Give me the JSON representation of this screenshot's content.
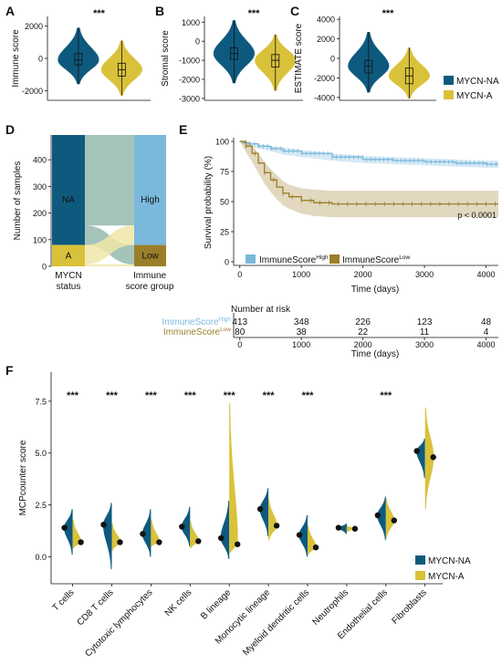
{
  "colors": {
    "na": "#0e5a7e",
    "a": "#d9c23a",
    "high": "#7ab8dc",
    "low": "#9a7f2a",
    "riverHigh": "#94b8ad",
    "riverA": "#f0e6a8"
  },
  "chart_data": [
    {
      "panel": "A",
      "type": "violin",
      "ylabel": "Immune score",
      "ylim": [
        -2600,
        2600
      ],
      "yticks": [
        -2000,
        0,
        2000
      ],
      "significance": "***",
      "series": [
        {
          "name": "MYCN-NA",
          "median": -100,
          "q1": -400,
          "q3": 300,
          "min": -1600,
          "max": 1900
        },
        {
          "name": "MYCN-A",
          "median": -700,
          "q1": -1100,
          "q3": -300,
          "min": -2300,
          "max": 1100
        }
      ]
    },
    {
      "panel": "B",
      "type": "violin",
      "ylabel": "Stromal score",
      "ylim": [
        -3100,
        1300
      ],
      "yticks": [
        -3000,
        -2000,
        -1000,
        0,
        1000
      ],
      "significance": "***",
      "series": [
        {
          "name": "MYCN-NA",
          "median": -650,
          "q1": -950,
          "q3": -350,
          "min": -2200,
          "max": 1100
        },
        {
          "name": "MYCN-A",
          "median": -1000,
          "q1": -1350,
          "q3": -700,
          "min": -2600,
          "max": 350
        }
      ]
    },
    {
      "panel": "C",
      "type": "violin",
      "ylabel": "ESTIMATE score",
      "ylim": [
        -4300,
        4300
      ],
      "yticks": [
        -4000,
        -2000,
        0,
        2000,
        4000
      ],
      "significance": "***",
      "series": [
        {
          "name": "MYCN-NA",
          "median": -800,
          "q1": -1500,
          "q3": -200,
          "min": -3500,
          "max": 2700
        },
        {
          "name": "MYCN-A",
          "median": -1800,
          "q1": -2600,
          "q3": -1000,
          "min": -4100,
          "max": 1100
        }
      ]
    },
    {
      "panel": "D",
      "type": "alluvial",
      "ylabel": "Number of samples",
      "ylim": [
        0,
        493
      ],
      "yticks": [
        0,
        100,
        200,
        300,
        400
      ],
      "axis1": {
        "label": "MYCN status",
        "strata": [
          {
            "name": "NA",
            "value": 413
          },
          {
            "name": "A",
            "value": 80
          }
        ]
      },
      "axis2": {
        "label": "Immune score group",
        "strata": [
          {
            "name": "High",
            "value": 413
          },
          {
            "name": "Low",
            "value": 80
          }
        ]
      },
      "flows": [
        {
          "from": "NA",
          "to": "High",
          "value": 340
        },
        {
          "from": "NA",
          "to": "Low",
          "value": 73
        },
        {
          "from": "A",
          "to": "High",
          "value": 73
        },
        {
          "from": "A",
          "to": "Low",
          "value": 7
        }
      ]
    },
    {
      "panel": "E",
      "type": "line",
      "ylabel": "Survival probability (%)",
      "xlabel": "Time (days)",
      "xlim": [
        -100,
        4200
      ],
      "ylim": [
        0,
        100
      ],
      "xticks": [
        0,
        1000,
        2000,
        3000,
        4000
      ],
      "yticks": [
        0,
        25,
        50,
        75,
        100
      ],
      "pvalue": "p < 0.0001",
      "series": [
        {
          "name": "ImmuneScore",
          "sup": "High",
          "x": [
            0,
            50,
            150,
            300,
            500,
            700,
            1000,
            1500,
            2000,
            2500,
            3000,
            3500,
            4000,
            4200
          ],
          "y": [
            100,
            99,
            98,
            96,
            94,
            92,
            90,
            87,
            85,
            84,
            83,
            82,
            81,
            81
          ],
          "lower": [
            100,
            98,
            96,
            94,
            92,
            89,
            87,
            84,
            82,
            81,
            80,
            79,
            78,
            78
          ],
          "upper": [
            100,
            100,
            99,
            98,
            96,
            95,
            93,
            90,
            88,
            87,
            86,
            85,
            84,
            84
          ]
        },
        {
          "name": "ImmuneScore",
          "sup": "Low",
          "x": [
            0,
            100,
            200,
            300,
            400,
            500,
            600,
            700,
            800,
            1000,
            1200,
            1500,
            2000,
            3000,
            4000,
            4200
          ],
          "y": [
            100,
            96,
            90,
            82,
            74,
            68,
            62,
            57,
            54,
            51,
            49,
            48,
            48,
            48,
            48,
            48
          ],
          "lower": [
            100,
            91,
            83,
            74,
            65,
            58,
            52,
            47,
            44,
            40,
            38,
            37,
            37,
            37,
            37,
            37
          ],
          "upper": [
            100,
            100,
            97,
            90,
            83,
            77,
            72,
            67,
            64,
            61,
            60,
            59,
            59,
            59,
            59,
            59
          ]
        }
      ],
      "risk_table": {
        "title": "Number at risk",
        "times": [
          0,
          1000,
          2000,
          3000,
          4000
        ],
        "rows": [
          {
            "name": "ImmuneScore",
            "sup": "High",
            "values": [
              413,
              348,
              226,
              123,
              48
            ]
          },
          {
            "name": "ImmuneScore",
            "sup": "Low",
            "values": [
              80,
              38,
              22,
              11,
              4
            ]
          }
        ],
        "xlabel": "Time (days)"
      }
    },
    {
      "panel": "F",
      "type": "violin",
      "ylabel": "MCPcounter score",
      "ylim": [
        -1.3,
        8.9
      ],
      "yticks": [
        0.0,
        2.5,
        5.0,
        7.5
      ],
      "categories": [
        "T cells",
        "CD8 T cells",
        "Cytotoxic lymphocytes",
        "NK cells",
        "B lineage",
        "Monocytic lineage",
        "Myeloid dendritic cells",
        "Neutrophils",
        "Endothelial cells",
        "Fibroblasts"
      ],
      "significance": [
        "***",
        "***",
        "***",
        "***",
        "***",
        "***",
        "***",
        "",
        "***",
        ""
      ],
      "series": [
        {
          "name": "MYCN-NA",
          "mean": [
            1.4,
            1.55,
            1.1,
            1.45,
            0.9,
            2.3,
            1.05,
            1.4,
            2.0,
            5.1
          ],
          "min": [
            0.1,
            -0.6,
            0.0,
            0.5,
            -0.1,
            1.0,
            0.0,
            1.1,
            0.8,
            3.8
          ],
          "max": [
            2.3,
            2.6,
            2.3,
            2.4,
            2.7,
            3.3,
            2.0,
            1.6,
            2.9,
            5.7
          ]
        },
        {
          "name": "MYCN-A",
          "mean": [
            0.7,
            0.7,
            0.7,
            0.75,
            0.6,
            1.5,
            0.45,
            1.35,
            1.75,
            4.8
          ],
          "min": [
            0.4,
            0.3,
            0.5,
            0.4,
            0.2,
            0.8,
            0.1,
            1.2,
            0.9,
            2.3
          ],
          "max": [
            1.8,
            1.6,
            1.8,
            1.7,
            7.4,
            2.8,
            1.5,
            1.5,
            2.8,
            7.2
          ]
        }
      ]
    }
  ],
  "legend_top": [
    "MYCN-NA",
    "MYCN-A"
  ],
  "legend_f": [
    "MYCN-NA",
    "MYCN-A"
  ]
}
